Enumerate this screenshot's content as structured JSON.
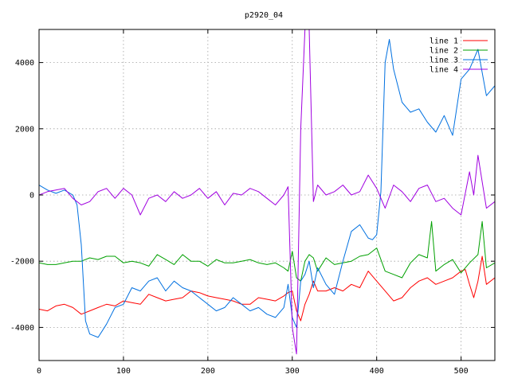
{
  "chart_data": {
    "type": "line",
    "title": "p2920_04",
    "xlabel": "",
    "ylabel": "",
    "xlim": [
      0,
      540
    ],
    "ylim": [
      -5000,
      5000
    ],
    "xticks": [
      0,
      100,
      200,
      300,
      400,
      500
    ],
    "yticks": [
      -4000,
      -2000,
      0,
      2000,
      4000
    ],
    "grid": true,
    "legend_position": "top-right",
    "series": [
      {
        "name": "line 1",
        "color": "#ff0000",
        "x": [
          0,
          10,
          20,
          30,
          40,
          50,
          60,
          70,
          80,
          90,
          100,
          110,
          120,
          130,
          140,
          150,
          160,
          170,
          180,
          190,
          200,
          210,
          220,
          230,
          240,
          250,
          260,
          270,
          280,
          290,
          295,
          300,
          305,
          310,
          315,
          320,
          325,
          330,
          340,
          350,
          360,
          370,
          380,
          390,
          400,
          410,
          420,
          430,
          440,
          450,
          460,
          470,
          480,
          490,
          500,
          505,
          510,
          515,
          520,
          525,
          530,
          540
        ],
        "values": [
          -3450,
          -3500,
          -3350,
          -3300,
          -3400,
          -3600,
          -3500,
          -3400,
          -3300,
          -3350,
          -3200,
          -3250,
          -3300,
          -3000,
          -3100,
          -3200,
          -3150,
          -3100,
          -2900,
          -2950,
          -3050,
          -3100,
          -3150,
          -3200,
          -3300,
          -3300,
          -3100,
          -3150,
          -3200,
          -3050,
          -2950,
          -2900,
          -3500,
          -3800,
          -3300,
          -3000,
          -2600,
          -2900,
          -2900,
          -2800,
          -2900,
          -2700,
          -2800,
          -2300,
          -2600,
          -2900,
          -3200,
          -3100,
          -2800,
          -2600,
          -2500,
          -2700,
          -2600,
          -2500,
          -2300,
          -2250,
          -2700,
          -3100,
          -2600,
          -1850,
          -2700,
          -2500
        ]
      },
      {
        "name": "line 2",
        "color": "#00a000",
        "x": [
          0,
          10,
          20,
          30,
          40,
          50,
          60,
          70,
          80,
          90,
          100,
          110,
          120,
          130,
          140,
          150,
          160,
          170,
          180,
          190,
          200,
          210,
          220,
          230,
          240,
          250,
          260,
          270,
          280,
          290,
          295,
          300,
          305,
          310,
          315,
          320,
          325,
          330,
          340,
          350,
          360,
          370,
          380,
          390,
          400,
          410,
          420,
          430,
          440,
          450,
          460,
          465,
          470,
          480,
          490,
          500,
          510,
          520,
          525,
          530,
          540
        ],
        "values": [
          -2050,
          -2100,
          -2100,
          -2050,
          -2000,
          -2000,
          -1900,
          -1950,
          -1850,
          -1850,
          -2050,
          -2000,
          -2050,
          -2150,
          -1800,
          -1950,
          -2100,
          -1800,
          -2000,
          -2000,
          -2150,
          -1950,
          -2050,
          -2050,
          -2000,
          -1950,
          -2050,
          -2100,
          -2050,
          -2200,
          -2300,
          -1700,
          -2500,
          -2600,
          -2000,
          -1800,
          -1900,
          -2300,
          -1900,
          -2100,
          -2050,
          -2000,
          -1850,
          -1800,
          -1600,
          -2300,
          -2400,
          -2500,
          -2050,
          -1800,
          -1900,
          -800,
          -2300,
          -2100,
          -1950,
          -2350,
          -2050,
          -1800,
          -800,
          -2200,
          -2050
        ]
      },
      {
        "name": "line 3",
        "color": "#0070e0",
        "x": [
          0,
          10,
          20,
          30,
          40,
          45,
          50,
          55,
          60,
          70,
          80,
          90,
          100,
          110,
          120,
          130,
          140,
          150,
          160,
          170,
          180,
          190,
          200,
          210,
          220,
          230,
          240,
          250,
          260,
          270,
          280,
          290,
          295,
          300,
          305,
          310,
          315,
          320,
          325,
          330,
          340,
          350,
          360,
          370,
          380,
          390,
          395,
          400,
          405,
          410,
          415,
          420,
          430,
          440,
          450,
          460,
          470,
          480,
          490,
          500,
          510,
          520,
          530,
          540
        ],
        "values": [
          300,
          150,
          50,
          150,
          0,
          -300,
          -1500,
          -3800,
          -4200,
          -4300,
          -3900,
          -3400,
          -3300,
          -2800,
          -2900,
          -2600,
          -2500,
          -2900,
          -2600,
          -2800,
          -2900,
          -3100,
          -3300,
          -3500,
          -3400,
          -3100,
          -3300,
          -3500,
          -3400,
          -3600,
          -3700,
          -3400,
          -2700,
          -3700,
          -4000,
          -2600,
          -2400,
          -2000,
          -2800,
          -2200,
          -2700,
          -3000,
          -2000,
          -1100,
          -900,
          -1300,
          -1350,
          -1200,
          100,
          4000,
          4700,
          3800,
          2800,
          2500,
          2600,
          2200,
          1900,
          2400,
          1800,
          3500,
          3800,
          4400,
          3000,
          3300
        ]
      },
      {
        "name": "line 4",
        "color": "#a000e0",
        "x": [
          0,
          10,
          20,
          30,
          40,
          50,
          60,
          70,
          80,
          90,
          100,
          110,
          120,
          130,
          140,
          150,
          160,
          170,
          180,
          190,
          200,
          210,
          220,
          230,
          240,
          250,
          260,
          270,
          280,
          290,
          295,
          300,
          305,
          310,
          315,
          320,
          325,
          330,
          340,
          350,
          360,
          370,
          380,
          390,
          400,
          410,
          420,
          430,
          440,
          450,
          460,
          470,
          480,
          490,
          500,
          510,
          515,
          520,
          525,
          530,
          540
        ],
        "values": [
          0,
          100,
          150,
          200,
          -100,
          -300,
          -200,
          100,
          200,
          -100,
          200,
          0,
          -600,
          -100,
          0,
          -200,
          100,
          -100,
          0,
          200,
          -100,
          100,
          -300,
          50,
          0,
          200,
          100,
          -100,
          -300,
          0,
          250,
          -4000,
          -4800,
          2000,
          5000,
          5000,
          -200,
          300,
          0,
          100,
          300,
          0,
          100,
          600,
          200,
          -400,
          300,
          100,
          -200,
          200,
          300,
          -200,
          -100,
          -400,
          -600,
          700,
          0,
          1200,
          400,
          -400,
          -200
        ]
      }
    ]
  }
}
